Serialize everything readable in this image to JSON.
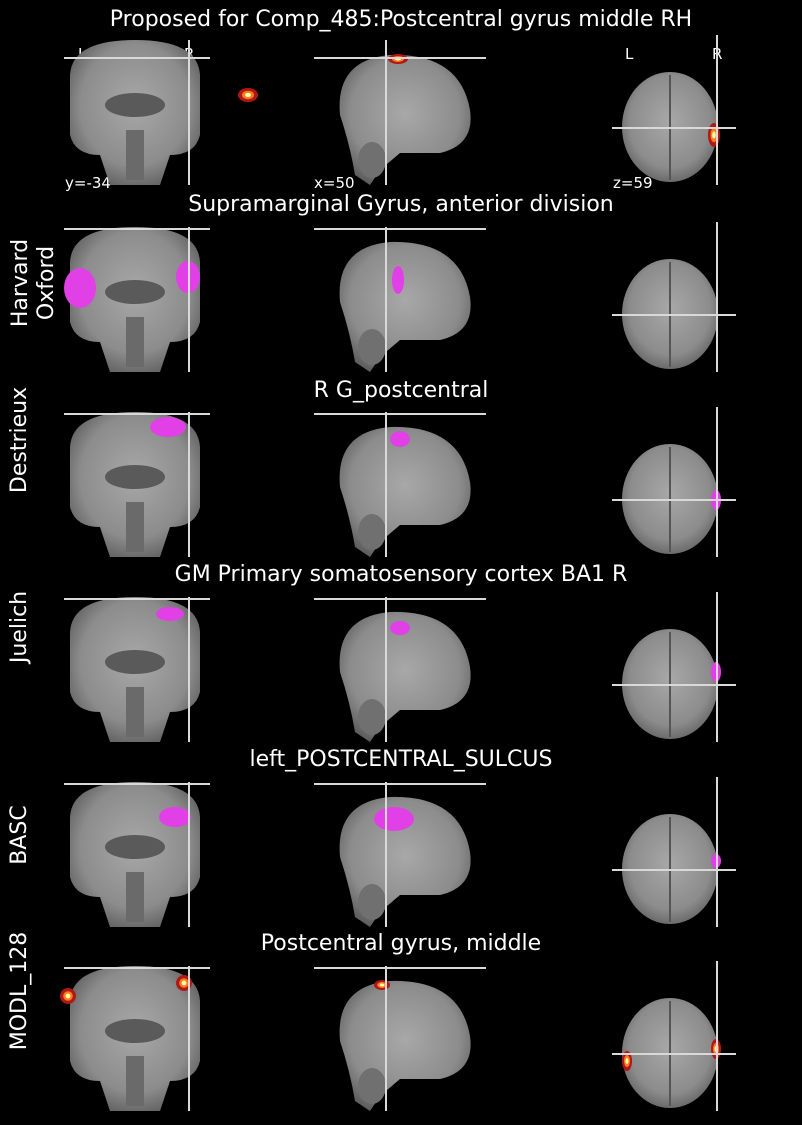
{
  "figure": {
    "title": "Proposed for Comp_485:Postcentral gyrus middle RH",
    "coords": {
      "coronal": "y=-34",
      "sagittal": "x=50",
      "axial": "z=59"
    },
    "orientation": {
      "left": "L",
      "right": "R"
    }
  },
  "rows": [
    {
      "atlas_label": "",
      "region": "",
      "overlay": "heat"
    },
    {
      "atlas_label": "Harvard\nOxford",
      "region": "Supramarginal Gyrus, anterior division",
      "overlay": "magenta"
    },
    {
      "atlas_label": "Destrieux",
      "region": "R G_postcentral",
      "overlay": "magenta"
    },
    {
      "atlas_label": "Juelich",
      "region": "GM Primary somatosensory cortex BA1 R",
      "overlay": "magenta"
    },
    {
      "atlas_label": "BASC",
      "region": "left_POSTCENTRAL_SULCUS",
      "overlay": "magenta"
    },
    {
      "atlas_label": "MODL_128",
      "region": "Postcentral gyrus, middle",
      "overlay": "heat"
    }
  ],
  "colors": {
    "background": "#000000",
    "crosshair": "#d9d9d9",
    "atlas_overlay": "#e040e6",
    "heat_low": "#b01818",
    "heat_high": "#ffffb0"
  }
}
